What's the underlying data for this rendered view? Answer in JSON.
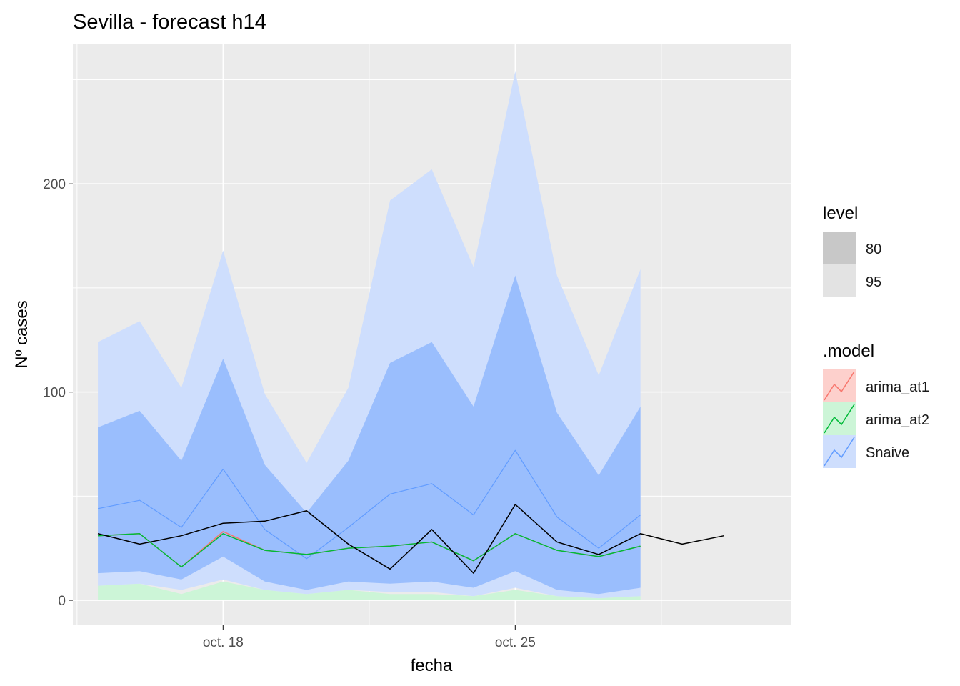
{
  "chart_data": {
    "type": "line",
    "title": "Sevilla - forecast h14",
    "xlabel": "fecha",
    "ylabel": "Nº cases",
    "x_ticks": [
      "oct. 18",
      "oct. 25"
    ],
    "y_ticks": [
      0,
      100,
      200
    ],
    "ylim": [
      -12,
      267
    ],
    "grid": true,
    "legend_position": "right",
    "level_legend": {
      "title": "level",
      "items": [
        "80",
        "95"
      ]
    },
    "model_legend": {
      "title": ".model",
      "items": [
        "arima_at1",
        "arima_at2",
        "Snaive"
      ]
    },
    "colors": {
      "panel": "#EBEBEB",
      "arima_at1": "#F8766D",
      "arima_at2": "#00BA38",
      "Snaive": "#619CFF",
      "actual": "#000000",
      "level80": "#C8C8C8",
      "level95": "#E3E3E3"
    },
    "dates": [
      "oct. 15",
      "oct. 16",
      "oct. 17",
      "oct. 18",
      "oct. 19",
      "oct. 20",
      "oct. 21",
      "oct. 22",
      "oct. 23",
      "oct. 24",
      "oct. 25",
      "oct. 26",
      "oct. 27",
      "oct. 28",
      "oct. 29",
      "oct. 30",
      "oct. 31"
    ],
    "actual": [
      32,
      27,
      31,
      37,
      38,
      43,
      27,
      15,
      34,
      13,
      46,
      28,
      22,
      32,
      27,
      31
    ],
    "series": [
      {
        "name": "Snaive",
        "mean": [
          44,
          48,
          35,
          63,
          34,
          20,
          35,
          51,
          56,
          41,
          72,
          40,
          25,
          41
        ],
        "lo80": [
          13,
          14,
          10,
          21,
          9,
          5,
          9,
          8,
          9,
          6,
          14,
          5,
          3,
          6
        ],
        "hi80": [
          83,
          91,
          67,
          116,
          65,
          42,
          67,
          114,
          124,
          93,
          156,
          90,
          60,
          93
        ],
        "lo95": [
          7,
          8,
          5,
          10,
          5,
          3,
          5,
          4,
          4,
          2,
          6,
          2,
          1,
          2
        ],
        "hi95": [
          124,
          134,
          102,
          168,
          99,
          66,
          102,
          192,
          207,
          160,
          254,
          156,
          108,
          159
        ]
      },
      {
        "name": "arima_at2",
        "mean": [
          31,
          32,
          16,
          32,
          24,
          22,
          25,
          26,
          28,
          19,
          32,
          24,
          21,
          26
        ],
        "lo95": [
          7,
          8,
          3,
          9,
          5,
          3,
          5,
          3,
          3,
          2,
          5,
          2,
          1,
          2
        ]
      },
      {
        "name": "arima_at1",
        "mean": [
          31,
          32,
          16,
          33,
          24,
          22,
          25,
          26,
          28,
          19,
          32,
          24,
          21,
          26
        ]
      }
    ]
  }
}
